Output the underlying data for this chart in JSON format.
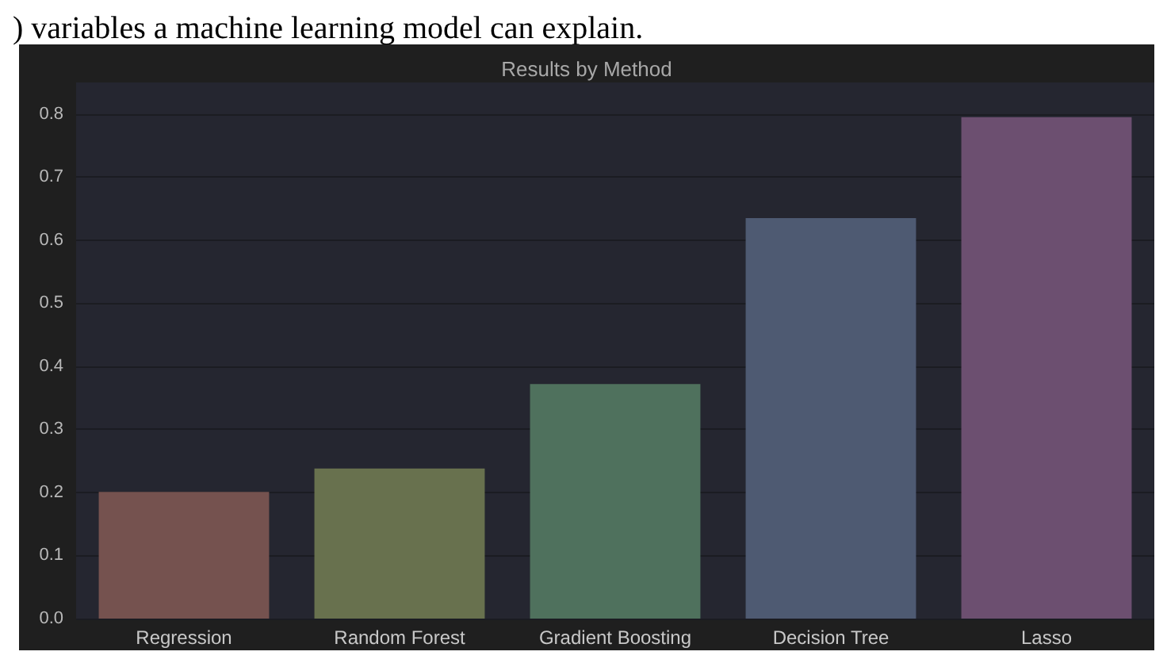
{
  "chart_data": {
    "type": "bar",
    "title": "Results by Method",
    "annotations": [
      ") variables a machine learning model can explain."
    ],
    "categories": [
      "Regression",
      "Random Forest",
      "Gradient Boosting",
      "Decision Tree",
      "Lasso"
    ],
    "values": [
      0.201,
      0.238,
      0.372,
      0.635,
      0.795
    ],
    "colors": [
      "#75524f",
      "#68714e",
      "#4f715d",
      "#4e5a72",
      "#6c4f70"
    ],
    "ylim": [
      0,
      0.85
    ],
    "yticks": [
      {
        "value": 0,
        "label": "0.0"
      },
      0.1,
      0.2,
      0.3,
      0.4,
      0.5,
      0.6,
      0.7,
      0.8
    ],
    "grid": "y"
  }
}
